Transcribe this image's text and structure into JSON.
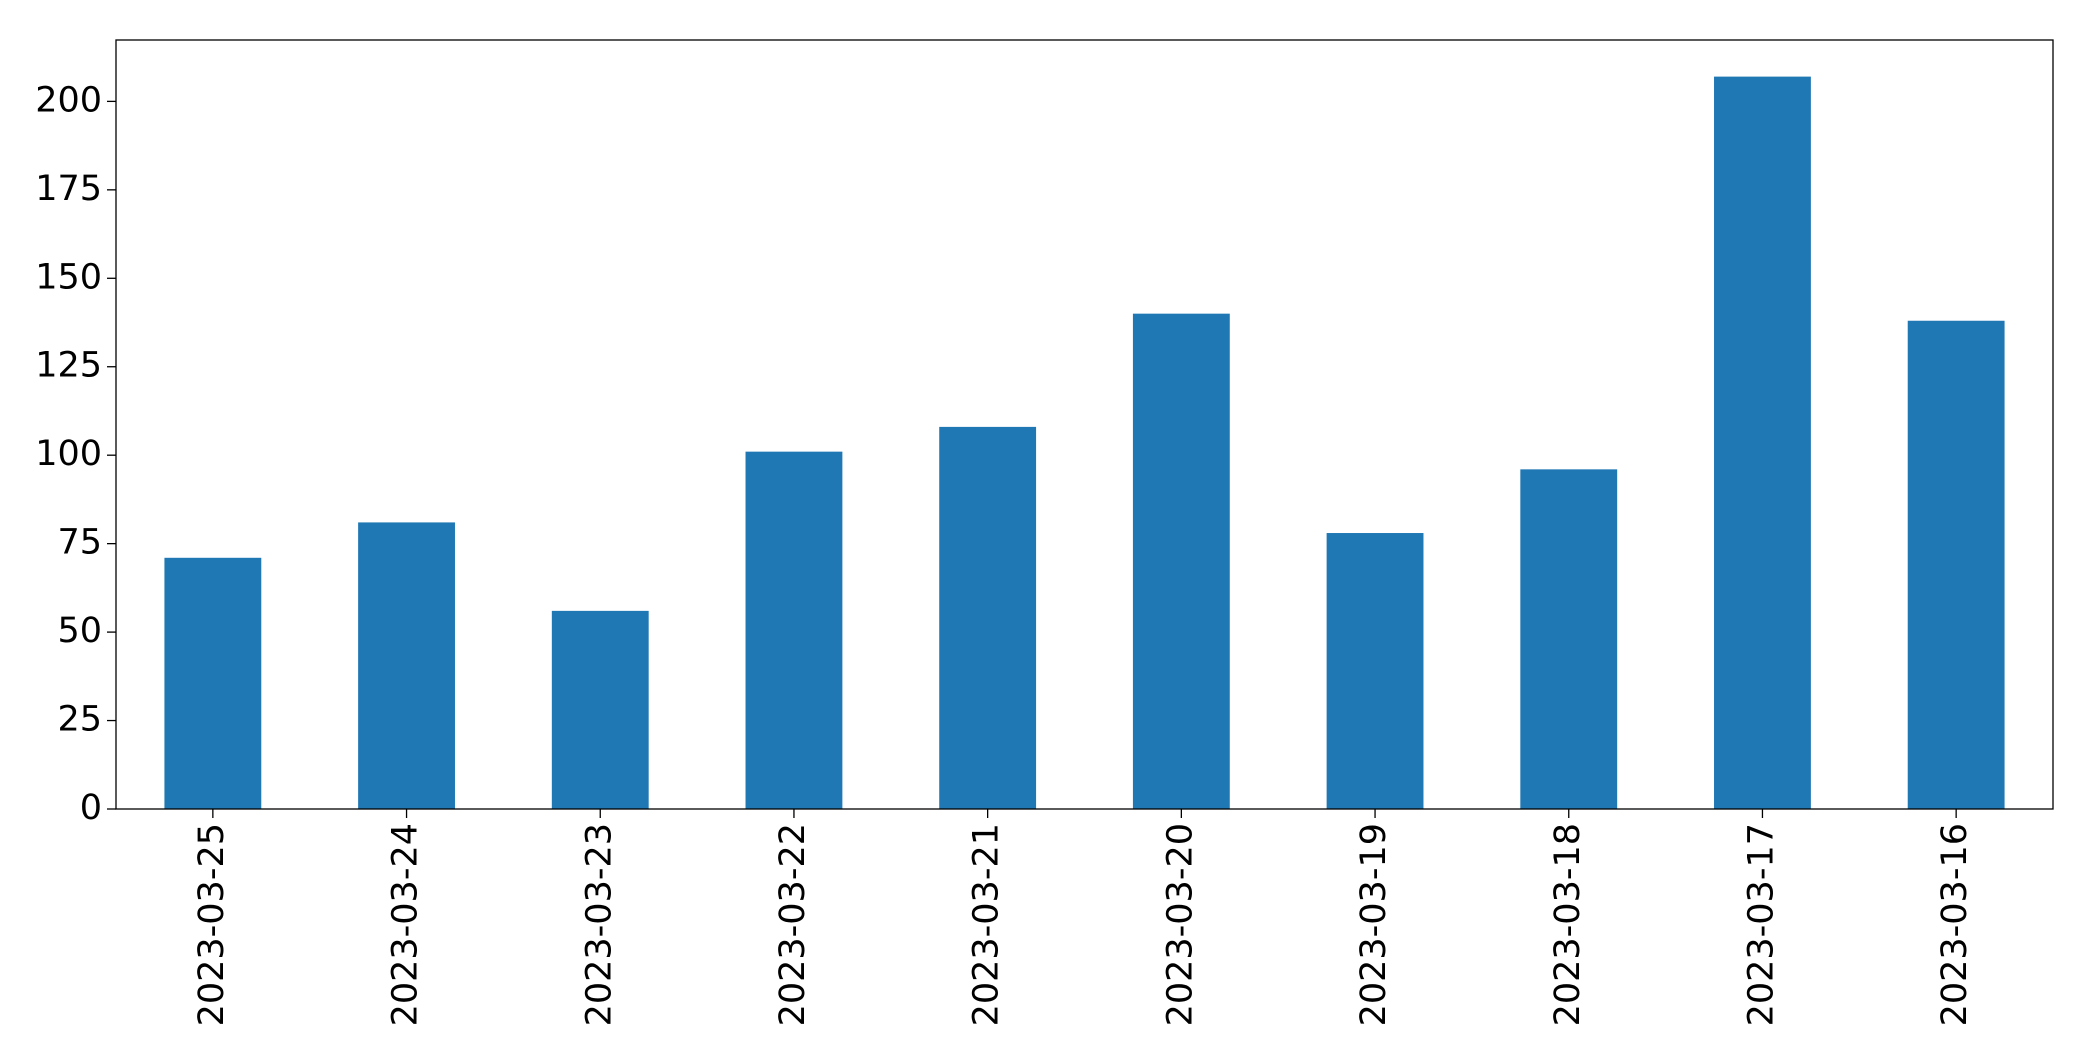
{
  "chart_data": {
    "type": "bar",
    "categories": [
      "2023-03-25",
      "2023-03-24",
      "2023-03-23",
      "2023-03-22",
      "2023-03-21",
      "2023-03-20",
      "2023-03-19",
      "2023-03-18",
      "2023-03-17",
      "2023-03-16"
    ],
    "values": [
      71,
      81,
      56,
      101,
      108,
      140,
      78,
      96,
      207,
      138
    ],
    "color": "#1f77b4",
    "ylim": [
      0,
      217.35
    ],
    "yticks": [
      0,
      25,
      50,
      75,
      100,
      125,
      150,
      175,
      200
    ],
    "grid": false
  }
}
